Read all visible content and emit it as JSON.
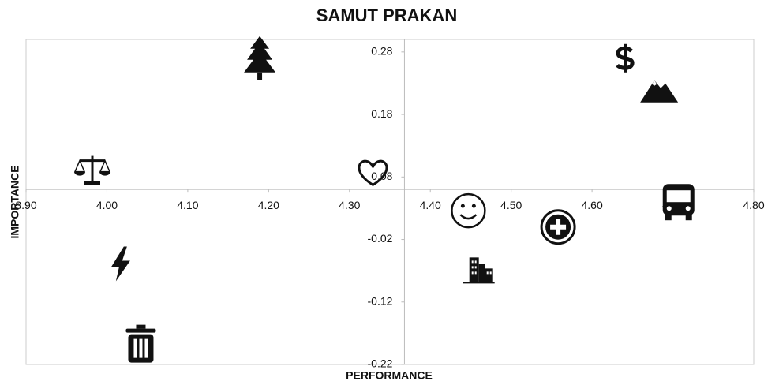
{
  "chart_data": {
    "type": "scatter",
    "title": "SAMUT PRAKAN",
    "x_label": "PERFORMANCE",
    "y_label": "IMPORTANCE",
    "x": [
      4.189,
      4.641,
      4.683,
      3.982,
      4.329,
      4.707,
      4.447,
      4.558,
      4.46,
      4.017,
      4.042
    ],
    "y": [
      0.27,
      0.27,
      0.217,
      0.091,
      0.085,
      0.041,
      0.026,
      0.0,
      -0.069,
      -0.059,
      -0.188
    ],
    "markers": [
      "tree",
      "dollar",
      "mountain",
      "scales",
      "heart",
      "bus",
      "smiley",
      "hospital",
      "building",
      "bolt",
      "trash"
    ],
    "color": "#111111",
    "xlim": [
      3.9,
      4.8
    ],
    "xticks": [
      {
        "value": 3.9,
        "label": "3.90"
      },
      {
        "value": 4.0,
        "label": "4.00"
      },
      {
        "value": 4.1,
        "label": "4.10"
      },
      {
        "value": 4.2,
        "label": "4.20"
      },
      {
        "value": 4.3,
        "label": "4.30"
      },
      {
        "value": 4.4,
        "label": "4.40"
      },
      {
        "value": 4.5,
        "label": "4.50"
      },
      {
        "value": 4.6,
        "label": "4.60"
      },
      {
        "value": 4.7,
        "label": "4.70"
      },
      {
        "value": 4.8,
        "label": "4.80"
      }
    ],
    "ylim": [
      -0.22,
      0.3
    ],
    "yticks": [
      -0.22,
      -0.12,
      -0.02,
      0.08,
      0.18,
      0.28
    ],
    "x_axis_crosses_at": 0.06,
    "y_axis_crosses_at": 4.368,
    "grid": false
  }
}
